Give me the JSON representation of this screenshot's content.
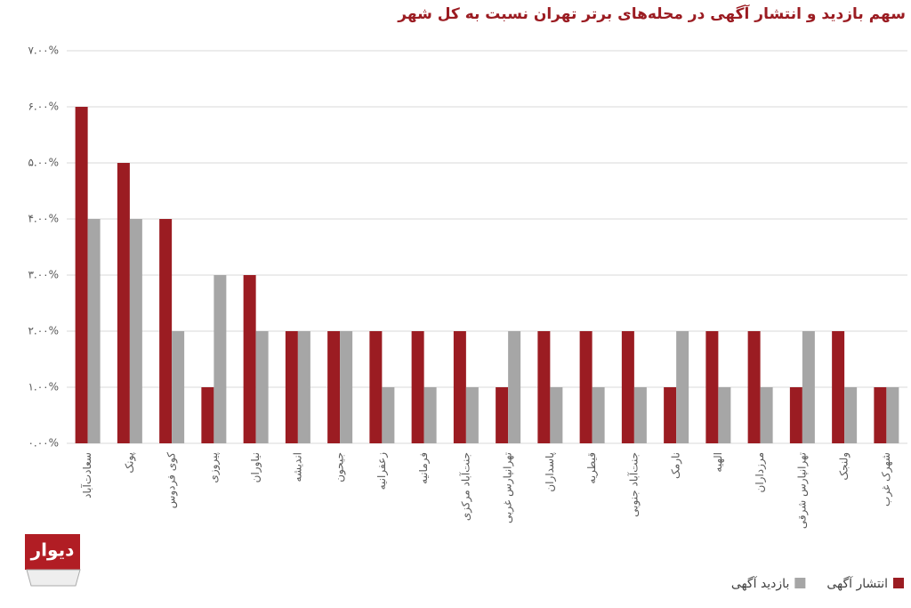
{
  "chart_data": {
    "type": "bar",
    "title": "سهم بازدید و انتشار آگهی در محله‌های برتر تهران نسبت به کل شهر",
    "categories": [
      "سعادت‌آباد",
      "پونک",
      "کوی فردوس",
      "پیروزی",
      "نیاوران",
      "اندیشه",
      "جیحون",
      "زعفرانیه",
      "فرمانیه",
      "جنت‌آباد مرکزی",
      "تهرانپارس غربی",
      "پاسداران",
      "قیطریه",
      "جنت‌آباد جنوبی",
      "نارمک",
      "الهیه",
      "مرزداران",
      "تهرانپارس شرقی",
      "ولنجک",
      "شهرک غرب"
    ],
    "series": [
      {
        "name": "انتشار آگهی",
        "color": "#9b1c22",
        "values": [
          6,
          5,
          4,
          1,
          3,
          2,
          2,
          2,
          2,
          2,
          1,
          2,
          2,
          2,
          1,
          2,
          2,
          1,
          2,
          1
        ]
      },
      {
        "name": "بازدید آگهی",
        "color": "#a6a6a6",
        "values": [
          4,
          4,
          2,
          3,
          2,
          2,
          2,
          1,
          1,
          1,
          2,
          1,
          1,
          1,
          2,
          1,
          1,
          2,
          1,
          1
        ]
      }
    ],
    "ylim": [
      0,
      7
    ],
    "yticks": [
      {
        "value": 0,
        "label": "۰.۰۰%"
      },
      {
        "value": 1,
        "label": "۱.۰۰%"
      },
      {
        "value": 2,
        "label": "۲.۰۰%"
      },
      {
        "value": 3,
        "label": "۳.۰۰%"
      },
      {
        "value": 4,
        "label": "۴.۰۰%"
      },
      {
        "value": 5,
        "label": "۵.۰۰%"
      },
      {
        "value": 6,
        "label": "۶.۰۰%"
      },
      {
        "value": 7,
        "label": "۷.۰۰%"
      }
    ],
    "grid": true,
    "legend": "bottom-right",
    "logo": "دیوار"
  }
}
